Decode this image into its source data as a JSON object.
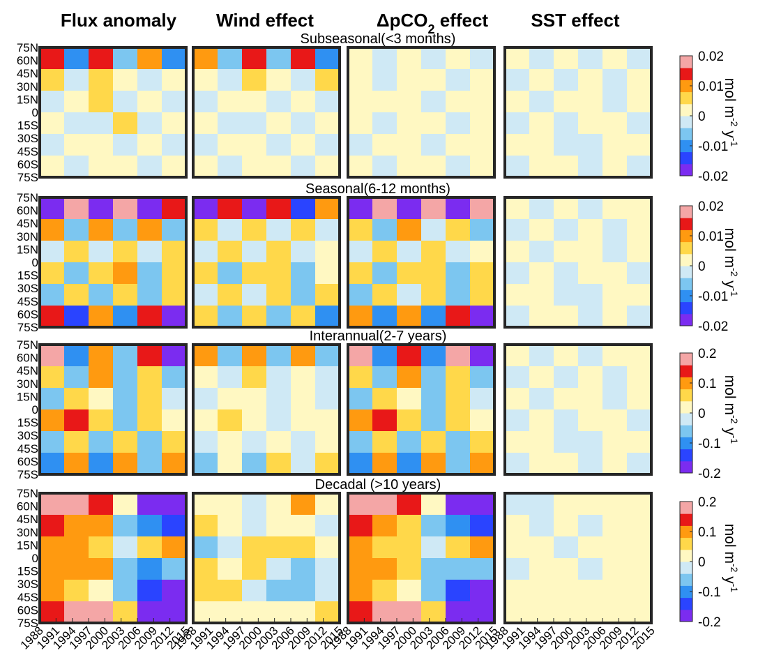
{
  "chart_data": {
    "type": "heatmap-grid",
    "column_titles": [
      {
        "text": "Flux anomaly"
      },
      {
        "text": "Wind effect"
      },
      {
        "text": "ΔpCO",
        "sub": "2",
        "rest": " effect"
      },
      {
        "text": "SST effect"
      }
    ],
    "xlim": [
      1988,
      2015
    ],
    "xticks": [
      1988,
      1991,
      1994,
      1997,
      2000,
      2003,
      2006,
      2009,
      2012,
      2015
    ],
    "ylim": [
      -75,
      75
    ],
    "yticks": [
      {
        "value": 75,
        "label": "75N"
      },
      {
        "value": 60,
        "label": "60N"
      },
      {
        "value": 45,
        "label": "45N"
      },
      {
        "value": 30,
        "label": "30N"
      },
      {
        "value": 15,
        "label": "15N"
      },
      0,
      {
        "value": -15,
        "label": "15S"
      },
      {
        "value": -30,
        "label": "30S"
      },
      {
        "value": -45,
        "label": "45S"
      },
      {
        "value": -60,
        "label": "60S"
      },
      {
        "value": -75,
        "label": "75S"
      }
    ],
    "colormap": [
      "#7b2cf0",
      "#2a44ff",
      "#2f90f2",
      "#7cc6f0",
      "#cfe9f5",
      "#fff8c2",
      "#ffd84a",
      "#ff9a10",
      "#e81818",
      "#f4a6a6"
    ],
    "colorbar_label": [
      "mol m",
      "-2",
      " y",
      "-1"
    ],
    "rows": [
      {
        "title": "Subseasonal(<3 months)",
        "clim": [
          -0.02,
          0.02
        ],
        "cticks": [
          0.02,
          0.01,
          0,
          -0.01,
          -0.02
        ],
        "panels": [
          {
            "values": [
              [
                0.012,
                -0.01,
                0.015,
                -0.008,
                0.01,
                -0.012
              ],
              [
                0.004,
                -0.003,
                0.005,
                0.002,
                -0.004,
                0.003
              ],
              [
                -0.003,
                0.003,
                0.004,
                -0.002,
                0.003,
                -0.002
              ],
              [
                0.003,
                -0.002,
                -0.003,
                0.004,
                -0.002,
                0.002
              ],
              [
                -0.002,
                0.003,
                0.002,
                -0.003,
                0.003,
                -0.004
              ],
              [
                0.003,
                -0.004,
                0.002,
                0.003,
                -0.003,
                0.002
              ]
            ]
          },
          {
            "values": [
              [
                0.01,
                -0.008,
                0.014,
                -0.006,
                0.012,
                -0.01
              ],
              [
                0.003,
                -0.004,
                0.004,
                0.003,
                -0.003,
                0.004
              ],
              [
                -0.002,
                0.003,
                0.003,
                -0.003,
                0.002,
                -0.002
              ],
              [
                0.002,
                -0.003,
                -0.002,
                0.003,
                -0.002,
                0.003
              ],
              [
                -0.003,
                0.002,
                0.003,
                -0.002,
                0.003,
                -0.003
              ],
              [
                0.002,
                -0.003,
                0.002,
                0.002,
                -0.002,
                0.003
              ]
            ]
          },
          {
            "values": [
              [
                0.003,
                -0.003,
                0.002,
                -0.002,
                0.003,
                -0.002
              ],
              [
                0.002,
                -0.002,
                0.003,
                0.002,
                -0.002,
                0.002
              ],
              [
                0.002,
                0.003,
                0.002,
                -0.001,
                0.002,
                0.003
              ],
              [
                0.002,
                -0.002,
                0.003,
                0.002,
                -0.002,
                0.002
              ],
              [
                -0.002,
                0.003,
                0.002,
                -0.002,
                0.003,
                0.002
              ],
              [
                0.003,
                -0.002,
                0.002,
                0.003,
                -0.002,
                0.002
              ]
            ]
          },
          {
            "values": [
              [
                0.001,
                -0.001,
                0.001,
                -0.001,
                0.001,
                -0.001
              ],
              [
                -0.001,
                0.001,
                -0.001,
                0.001,
                -0.001,
                0.001
              ],
              [
                0.001,
                -0.001,
                0.001,
                0.001,
                -0.001,
                0.001
              ],
              [
                -0.001,
                0.001,
                -0.001,
                0.001,
                0.001,
                -0.001
              ],
              [
                0.001,
                0.001,
                -0.001,
                -0.001,
                0.001,
                0.001
              ],
              [
                -0.001,
                0.001,
                0.001,
                -0.001,
                0.001,
                -0.001
              ]
            ]
          }
        ]
      },
      {
        "title": "Seasonal(6-12 months)",
        "clim": [
          -0.02,
          0.02
        ],
        "cticks": [
          0.02,
          0.01,
          0,
          -0.01,
          -0.02
        ],
        "panels": [
          {
            "values": [
              [
                -0.02,
                0.02,
                -0.02,
                0.02,
                -0.02,
                0.015
              ],
              [
                0.008,
                -0.006,
                0.01,
                -0.005,
                0.008,
                -0.007
              ],
              [
                -0.004,
                0.006,
                -0.003,
                0.005,
                -0.004,
                0.004
              ],
              [
                0.005,
                -0.008,
                0.006,
                0.008,
                -0.007,
                0.004
              ],
              [
                -0.006,
                0.007,
                -0.005,
                0.006,
                -0.008,
                0.005
              ],
              [
                0.012,
                -0.015,
                0.01,
                -0.012,
                0.014,
                -0.02
              ]
            ]
          },
          {
            "values": [
              [
                -0.018,
                0.015,
                -0.02,
                0.012,
                -0.016,
                0.01
              ],
              [
                0.005,
                -0.004,
                0.006,
                -0.003,
                0.005,
                -0.004
              ],
              [
                -0.003,
                0.004,
                -0.002,
                0.004,
                -0.003,
                0.003
              ],
              [
                0.004,
                -0.005,
                0.005,
                0.006,
                -0.005,
                0.003
              ],
              [
                -0.004,
                0.005,
                -0.003,
                0.004,
                -0.006,
                0.004
              ],
              [
                0.006,
                -0.008,
                0.005,
                -0.006,
                0.007,
                -0.01
              ]
            ]
          },
          {
            "values": [
              [
                -0.02,
                0.018,
                -0.02,
                0.016,
                -0.02,
                0.02
              ],
              [
                0.007,
                -0.006,
                0.009,
                -0.004,
                0.007,
                -0.006
              ],
              [
                -0.004,
                0.005,
                -0.003,
                0.005,
                -0.004,
                0.003
              ],
              [
                0.004,
                -0.007,
                0.005,
                0.007,
                -0.006,
                0.004
              ],
              [
                -0.005,
                0.006,
                -0.004,
                0.005,
                -0.007,
                0.004
              ],
              [
                0.01,
                -0.012,
                0.009,
                -0.01,
                0.012,
                -0.018
              ]
            ]
          },
          {
            "values": [
              [
                0.001,
                -0.001,
                0.001,
                -0.001,
                0.001,
                0.001
              ],
              [
                -0.001,
                0.001,
                -0.001,
                0.001,
                -0.001,
                0.001
              ],
              [
                0.001,
                -0.001,
                0.001,
                0.001,
                -0.001,
                0.001
              ],
              [
                -0.001,
                0.001,
                -0.001,
                0.001,
                0.001,
                -0.001
              ],
              [
                0.001,
                0.001,
                -0.001,
                -0.001,
                0.001,
                0.001
              ],
              [
                -0.001,
                0.001,
                0.001,
                -0.001,
                0.001,
                -0.001
              ]
            ]
          }
        ]
      },
      {
        "title": "Interannual(2-7 years)",
        "clim": [
          -0.2,
          0.2
        ],
        "cticks": [
          0.2,
          0.1,
          0,
          -0.1,
          -0.2
        ],
        "panels": [
          {
            "values": [
              [
                0.2,
                -0.1,
                0.12,
                -0.08,
                0.15,
                -0.2
              ],
              [
                0.06,
                -0.05,
                0.08,
                -0.04,
                0.07,
                -0.06
              ],
              [
                -0.04,
                0.05,
                0.03,
                -0.05,
                0.04,
                -0.03
              ],
              [
                0.1,
                0.15,
                0.05,
                -0.05,
                0.06,
                0.03
              ],
              [
                -0.05,
                0.06,
                -0.04,
                0.05,
                -0.06,
                0.04
              ],
              [
                -0.1,
                0.08,
                -0.12,
                0.1,
                -0.08,
                0.12
              ]
            ]
          },
          {
            "values": [
              [
                0.08,
                -0.05,
                0.1,
                -0.04,
                0.09,
                -0.06
              ],
              [
                0.03,
                -0.03,
                0.04,
                -0.02,
                0.03,
                -0.03
              ],
              [
                -0.02,
                0.03,
                0.02,
                -0.02,
                0.02,
                -0.02
              ],
              [
                0.03,
                0.04,
                0.02,
                -0.02,
                0.03,
                0.02
              ],
              [
                -0.03,
                0.03,
                -0.02,
                0.02,
                -0.03,
                0.02
              ],
              [
                -0.04,
                0.03,
                -0.05,
                0.04,
                -0.03,
                0.05
              ]
            ]
          },
          {
            "values": [
              [
                0.2,
                -0.12,
                0.14,
                -0.1,
                0.16,
                -0.2
              ],
              [
                0.06,
                -0.06,
                0.08,
                -0.05,
                0.07,
                -0.06
              ],
              [
                -0.04,
                0.05,
                0.03,
                -0.05,
                0.04,
                -0.03
              ],
              [
                0.1,
                0.14,
                0.05,
                -0.05,
                0.05,
                0.03
              ],
              [
                -0.05,
                0.06,
                -0.04,
                0.05,
                -0.06,
                0.04
              ],
              [
                -0.1,
                0.08,
                -0.12,
                0.1,
                -0.08,
                0.12
              ]
            ]
          },
          {
            "values": [
              [
                0.01,
                -0.01,
                0.01,
                -0.01,
                0.01,
                0.01
              ],
              [
                -0.01,
                0.01,
                -0.01,
                0.01,
                -0.01,
                0.01
              ],
              [
                0.01,
                -0.01,
                0.01,
                0.01,
                -0.01,
                0.01
              ],
              [
                -0.01,
                0.01,
                -0.01,
                0.01,
                0.01,
                -0.01
              ],
              [
                0.01,
                0.01,
                -0.01,
                -0.01,
                0.01,
                0.01
              ],
              [
                -0.01,
                0.01,
                0.01,
                -0.01,
                0.01,
                -0.01
              ]
            ]
          }
        ]
      },
      {
        "title": "Decadal (>10 years)",
        "clim": [
          -0.2,
          0.2
        ],
        "cticks": [
          0.2,
          0.1,
          0,
          -0.1,
          -0.2
        ],
        "panels": [
          {
            "values": [
              [
                0.2,
                0.2,
                0.15,
                0.02,
                -0.2,
                -0.2
              ],
              [
                0.15,
                0.12,
                0.08,
                -0.05,
                -0.1,
                -0.15
              ],
              [
                0.1,
                0.08,
                0.05,
                -0.02,
                0.05,
                0.1
              ],
              [
                0.1,
                0.12,
                0.08,
                -0.05,
                -0.1,
                -0.05
              ],
              [
                0.12,
                0.05,
                0.03,
                -0.08,
                -0.15,
                -0.2
              ],
              [
                0.15,
                0.2,
                0.2,
                0.05,
                -0.2,
                -0.2
              ]
            ]
          },
          {
            "values": [
              [
                0.02,
                0.03,
                -0.02,
                0.02,
                0.08,
                0.03
              ],
              [
                0.05,
                0.03,
                -0.03,
                0.03,
                0.02,
                -0.02
              ],
              [
                -0.05,
                -0.03,
                0.04,
                0.05,
                0.06,
                0.03
              ],
              [
                0.04,
                0.03,
                0.05,
                -0.03,
                -0.05,
                -0.02
              ],
              [
                0.06,
                0.05,
                -0.02,
                -0.04,
                -0.05,
                -0.02
              ],
              [
                0.02,
                0.03,
                0.03,
                0.02,
                0.02,
                0.05
              ]
            ]
          },
          {
            "values": [
              [
                0.2,
                0.2,
                0.15,
                0.01,
                -0.2,
                -0.2
              ],
              [
                0.14,
                0.12,
                0.07,
                -0.05,
                -0.12,
                -0.15
              ],
              [
                0.1,
                0.07,
                0.04,
                -0.03,
                0.06,
                0.1
              ],
              [
                0.1,
                0.12,
                0.07,
                -0.05,
                -0.08,
                -0.05
              ],
              [
                0.12,
                0.06,
                0.03,
                -0.08,
                -0.15,
                -0.2
              ],
              [
                0.15,
                0.2,
                0.2,
                0.04,
                -0.2,
                -0.2
              ]
            ]
          },
          {
            "values": [
              [
                -0.01,
                -0.01,
                0.005,
                0.01,
                0.01,
                0.01
              ],
              [
                0.01,
                -0.005,
                0.01,
                -0.005,
                0.01,
                0.01
              ],
              [
                0.01,
                0.01,
                -0.005,
                0.01,
                0.01,
                0.01
              ],
              [
                -0.005,
                0.01,
                0.01,
                -0.005,
                0.01,
                0.01
              ],
              [
                0.01,
                0.01,
                0.01,
                0.01,
                0.01,
                0.01
              ],
              [
                0.01,
                0.005,
                0.01,
                0.01,
                0.01,
                0.01
              ]
            ]
          }
        ]
      }
    ]
  }
}
